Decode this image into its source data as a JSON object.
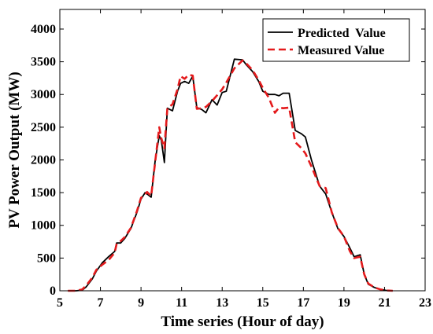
{
  "chart_data": {
    "type": "line",
    "title": "",
    "xlabel": "Time series (Hour of day)",
    "ylabel": "PV Power Output (MW)",
    "xlim": [
      5,
      23
    ],
    "ylim": [
      0,
      4300
    ],
    "xticks": [
      5,
      7,
      9,
      11,
      13,
      15,
      17,
      19,
      21,
      23
    ],
    "yticks": [
      0,
      500,
      1000,
      1500,
      2000,
      2500,
      3000,
      3500,
      4000
    ],
    "grid": false,
    "legend_position": "top-right",
    "series": [
      {
        "name": "Predicted  Value",
        "color": "#000000",
        "style": "solid",
        "points": [
          [
            5.4,
            0
          ],
          [
            5.8,
            0
          ],
          [
            6.1,
            10
          ],
          [
            6.3,
            60
          ],
          [
            6.6,
            180
          ],
          [
            6.8,
            300
          ],
          [
            7.1,
            430
          ],
          [
            7.4,
            520
          ],
          [
            7.7,
            600
          ],
          [
            7.8,
            730
          ],
          [
            8.0,
            730
          ],
          [
            8.2,
            800
          ],
          [
            8.5,
            950
          ],
          [
            8.8,
            1200
          ],
          [
            9.0,
            1400
          ],
          [
            9.2,
            1500
          ],
          [
            9.3,
            1480
          ],
          [
            9.5,
            1430
          ],
          [
            9.7,
            2000
          ],
          [
            9.9,
            2370
          ],
          [
            10.0,
            2300
          ],
          [
            10.15,
            1960
          ],
          [
            10.3,
            2790
          ],
          [
            10.55,
            2750
          ],
          [
            10.8,
            3050
          ],
          [
            10.95,
            3170
          ],
          [
            11.15,
            3200
          ],
          [
            11.35,
            3170
          ],
          [
            11.55,
            3280
          ],
          [
            11.75,
            2800
          ],
          [
            12.0,
            2770
          ],
          [
            12.2,
            2720
          ],
          [
            12.5,
            2920
          ],
          [
            12.75,
            2840
          ],
          [
            13.0,
            3030
          ],
          [
            13.2,
            3050
          ],
          [
            13.6,
            3540
          ],
          [
            14.0,
            3530
          ],
          [
            14.2,
            3450
          ],
          [
            14.5,
            3350
          ],
          [
            14.8,
            3200
          ],
          [
            15.0,
            3050
          ],
          [
            15.3,
            3000
          ],
          [
            15.6,
            3000
          ],
          [
            15.8,
            2980
          ],
          [
            16.0,
            3020
          ],
          [
            16.3,
            3020
          ],
          [
            16.6,
            2450
          ],
          [
            16.9,
            2400
          ],
          [
            17.1,
            2350
          ],
          [
            17.4,
            2000
          ],
          [
            17.8,
            1600
          ],
          [
            18.1,
            1480
          ],
          [
            18.4,
            1200
          ],
          [
            18.7,
            950
          ],
          [
            19.0,
            830
          ],
          [
            19.3,
            650
          ],
          [
            19.5,
            520
          ],
          [
            19.8,
            550
          ],
          [
            20.0,
            250
          ],
          [
            20.2,
            100
          ],
          [
            20.5,
            50
          ],
          [
            20.8,
            20
          ],
          [
            21.1,
            5
          ],
          [
            21.4,
            0
          ]
        ]
      },
      {
        "name": "Measured Value",
        "color": "#e41a1c",
        "style": "dashed",
        "points": [
          [
            5.4,
            0
          ],
          [
            5.8,
            0
          ],
          [
            6.1,
            20
          ],
          [
            6.3,
            80
          ],
          [
            6.6,
            200
          ],
          [
            6.8,
            320
          ],
          [
            7.1,
            400
          ],
          [
            7.4,
            470
          ],
          [
            7.7,
            580
          ],
          [
            7.8,
            720
          ],
          [
            8.0,
            760
          ],
          [
            8.2,
            820
          ],
          [
            8.5,
            960
          ],
          [
            8.8,
            1220
          ],
          [
            9.0,
            1420
          ],
          [
            9.2,
            1470
          ],
          [
            9.3,
            1510
          ],
          [
            9.5,
            1450
          ],
          [
            9.7,
            1980
          ],
          [
            9.9,
            2500
          ],
          [
            10.0,
            2330
          ],
          [
            10.15,
            2180
          ],
          [
            10.3,
            2790
          ],
          [
            10.55,
            2850
          ],
          [
            10.8,
            3080
          ],
          [
            10.95,
            3280
          ],
          [
            11.15,
            3240
          ],
          [
            11.35,
            3300
          ],
          [
            11.55,
            3290
          ],
          [
            11.75,
            2780
          ],
          [
            12.0,
            2790
          ],
          [
            12.2,
            2810
          ],
          [
            12.5,
            2900
          ],
          [
            12.75,
            2990
          ],
          [
            13.0,
            3080
          ],
          [
            13.2,
            3180
          ],
          [
            13.6,
            3400
          ],
          [
            14.0,
            3520
          ],
          [
            14.2,
            3470
          ],
          [
            14.5,
            3370
          ],
          [
            14.8,
            3220
          ],
          [
            15.0,
            3100
          ],
          [
            15.3,
            2950
          ],
          [
            15.6,
            2720
          ],
          [
            15.8,
            2800
          ],
          [
            16.0,
            2790
          ],
          [
            16.3,
            2800
          ],
          [
            16.6,
            2270
          ],
          [
            16.9,
            2180
          ],
          [
            17.1,
            2100
          ],
          [
            17.4,
            1900
          ],
          [
            17.8,
            1600
          ],
          [
            18.1,
            1570
          ],
          [
            18.4,
            1200
          ],
          [
            18.7,
            960
          ],
          [
            19.0,
            830
          ],
          [
            19.3,
            600
          ],
          [
            19.5,
            500
          ],
          [
            19.8,
            520
          ],
          [
            20.0,
            250
          ],
          [
            20.2,
            110
          ],
          [
            20.5,
            50
          ],
          [
            20.8,
            20
          ],
          [
            21.1,
            5
          ],
          [
            21.4,
            0
          ]
        ]
      }
    ]
  }
}
